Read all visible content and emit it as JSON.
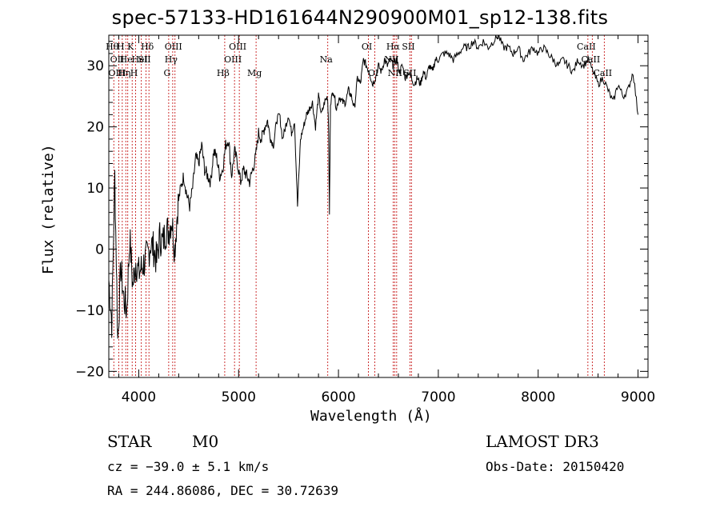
{
  "chart_data": {
    "type": "line",
    "title": "spec-57133-HD161644N290900M01_sp12-138.fits",
    "xlabel": "Wavelength (Å)",
    "ylabel": "Flux (relative)",
    "xlim": [
      3700,
      9100
    ],
    "ylim": [
      -21,
      35
    ],
    "xticks": [
      4000,
      5000,
      6000,
      7000,
      8000,
      9000
    ],
    "xtick_labels": [
      "4000",
      "5000",
      "6000",
      "7000",
      "8000",
      "9000"
    ],
    "yticks": [
      -20,
      -10,
      0,
      10,
      20,
      30
    ],
    "ytick_labels": [
      "−20",
      "−10",
      "0",
      "10",
      "20",
      "30"
    ],
    "grid": false,
    "series": [
      {
        "color": "#000000",
        "x": [
          3700,
          3730,
          3760,
          3790,
          3820,
          3850,
          3880,
          3910,
          3940,
          3970,
          4000,
          4030,
          4060,
          4090,
          4120,
          4150,
          4180,
          4210,
          4240,
          4270,
          4300,
          4330,
          4360,
          4390,
          4420,
          4450,
          4480,
          4510,
          4540,
          4570,
          4600,
          4630,
          4660,
          4690,
          4720,
          4750,
          4780,
          4810,
          4840,
          4870,
          4900,
          4930,
          4960,
          4990,
          5020,
          5050,
          5080,
          5110,
          5140,
          5170,
          5200,
          5230,
          5260,
          5290,
          5320,
          5350,
          5380,
          5410,
          5440,
          5470,
          5500,
          5530,
          5560,
          5590,
          5620,
          5650,
          5680,
          5710,
          5740,
          5770,
          5800,
          5830,
          5860,
          5890,
          5900,
          5910,
          5920,
          5950,
          5980,
          6010,
          6040,
          6070,
          6100,
          6130,
          6160,
          6190,
          6220,
          6250,
          6280,
          6310,
          6340,
          6370,
          6400,
          6430,
          6460,
          6490,
          6520,
          6550,
          6580,
          6610,
          6640,
          6670,
          6700,
          6730,
          6760,
          6790,
          6820,
          6850,
          6880,
          6910,
          6940,
          6970,
          7000,
          7050,
          7100,
          7150,
          7200,
          7250,
          7300,
          7350,
          7400,
          7450,
          7500,
          7550,
          7600,
          7650,
          7700,
          7750,
          7800,
          7850,
          7900,
          7950,
          8000,
          8050,
          8100,
          8150,
          8200,
          8250,
          8300,
          8350,
          8400,
          8450,
          8500,
          8550,
          8600,
          8650,
          8700,
          8750,
          8800,
          8850,
          8900,
          8950,
          9000
        ],
        "y": [
          -5,
          -12,
          12,
          -15,
          -3,
          -8,
          -10,
          2,
          -6,
          -2,
          -4,
          -3,
          -2,
          -1,
          1,
          0,
          -2,
          2,
          1,
          3,
          3,
          5,
          0,
          7,
          10,
          12,
          9,
          7,
          10,
          15,
          14,
          17,
          13,
          12,
          11,
          16,
          15,
          12,
          13,
          17,
          18,
          12,
          16,
          14,
          11,
          13,
          12,
          11,
          13,
          15,
          19,
          18,
          20,
          21,
          18,
          17,
          21,
          22,
          18,
          20,
          22,
          19,
          21,
          7,
          18,
          20,
          22,
          23,
          24,
          20,
          25,
          22,
          24,
          25,
          21,
          6,
          24,
          26,
          23,
          25,
          24,
          24,
          26,
          25,
          23,
          28,
          27,
          31,
          30,
          29,
          27,
          28,
          30,
          29,
          31,
          30,
          31,
          30,
          31,
          29,
          30,
          28,
          29,
          28,
          27,
          28,
          27,
          29,
          28,
          30,
          29,
          31,
          31,
          32,
          32,
          31,
          32,
          33,
          33,
          34,
          33,
          34,
          33,
          34,
          35,
          33,
          33,
          32,
          33,
          31,
          32,
          33,
          32,
          33,
          32,
          31,
          30,
          31,
          30,
          29,
          31,
          30,
          31,
          29,
          27,
          28,
          26,
          24,
          27,
          25,
          26,
          29,
          22
        ]
      }
    ],
    "lines": [
      {
        "x": 3750,
        "labels": [
          {
            "t": "Hθ",
            "row": 0
          }
        ]
      },
      {
        "x": 3800,
        "labels": [
          {
            "t": "OII",
            "row": 1
          },
          {
            "t": "OIII",
            "row": 2
          }
        ]
      },
      {
        "x": 3835,
        "labels": [
          {
            "t": "H",
            "row": 0
          }
        ]
      },
      {
        "x": 3870,
        "labels": [
          {
            "t": "Hη",
            "row": 2
          }
        ]
      },
      {
        "x": 3890,
        "labels": [
          {
            "t": "He",
            "row": 1
          }
        ]
      },
      {
        "x": 3934,
        "labels": [
          {
            "t": "K",
            "row": 0
          }
        ]
      },
      {
        "x": 3969,
        "labels": [
          {
            "t": "H",
            "row": 2
          }
        ]
      },
      {
        "x": 4026,
        "labels": [
          {
            "t": "HeI",
            "row": 1
          }
        ]
      },
      {
        "x": 4072,
        "labels": [
          {
            "t": "SII",
            "row": 1
          }
        ]
      },
      {
        "x": 4102,
        "labels": [
          {
            "t": "Hδ",
            "row": 0
          }
        ]
      },
      {
        "x": 4300,
        "labels": [
          {
            "t": "G",
            "row": 2
          }
        ]
      },
      {
        "x": 4340,
        "labels": [
          {
            "t": "Hγ",
            "row": 1
          }
        ]
      },
      {
        "x": 4363,
        "labels": [
          {
            "t": "OIII",
            "row": 0
          }
        ]
      },
      {
        "x": 4861,
        "labels": [
          {
            "t": "Hβ",
            "row": 2
          }
        ]
      },
      {
        "x": 4959,
        "labels": [
          {
            "t": "OIII",
            "row": 1
          }
        ]
      },
      {
        "x": 5007,
        "labels": [
          {
            "t": "OIII",
            "row": 0
          }
        ]
      },
      {
        "x": 5175,
        "labels": [
          {
            "t": "Mg",
            "row": 2
          }
        ]
      },
      {
        "x": 5893,
        "labels": [
          {
            "t": "Na",
            "row": 1
          }
        ]
      },
      {
        "x": 6300,
        "labels": [
          {
            "t": "OI",
            "row": 0
          }
        ]
      },
      {
        "x": 6364,
        "labels": [
          {
            "t": "OI",
            "row": 2
          }
        ]
      },
      {
        "x": 6548,
        "labels": [
          {
            "t": "NII",
            "row": 1
          }
        ]
      },
      {
        "x": 6563,
        "labels": [
          {
            "t": "Hα",
            "row": 0
          }
        ]
      },
      {
        "x": 6583,
        "labels": [
          {
            "t": "NII",
            "row": 2
          }
        ]
      },
      {
        "x": 6716,
        "labels": [
          {
            "t": "SII",
            "row": 0
          }
        ]
      },
      {
        "x": 6731,
        "labels": [
          {
            "t": "SII",
            "row": 2
          }
        ]
      },
      {
        "x": 8498,
        "labels": [
          {
            "t": "CaII",
            "row": 0
          }
        ]
      },
      {
        "x": 8542,
        "labels": [
          {
            "t": "CaII",
            "row": 1
          }
        ]
      },
      {
        "x": 8662,
        "labels": [
          {
            "t": "CaII",
            "row": 2
          }
        ]
      }
    ]
  },
  "info": {
    "object_class": "STAR",
    "subclass": "M0",
    "survey": "LAMOST DR3",
    "cz": "cz = −39.0 ± 5.1 km/s",
    "obs_date": "Obs-Date: 20150420",
    "radec": "RA = 244.86086, DEC =  30.72639"
  },
  "colors": {
    "line_marker": "#c00000",
    "spectrum": "#000000",
    "axis": "#000000"
  }
}
